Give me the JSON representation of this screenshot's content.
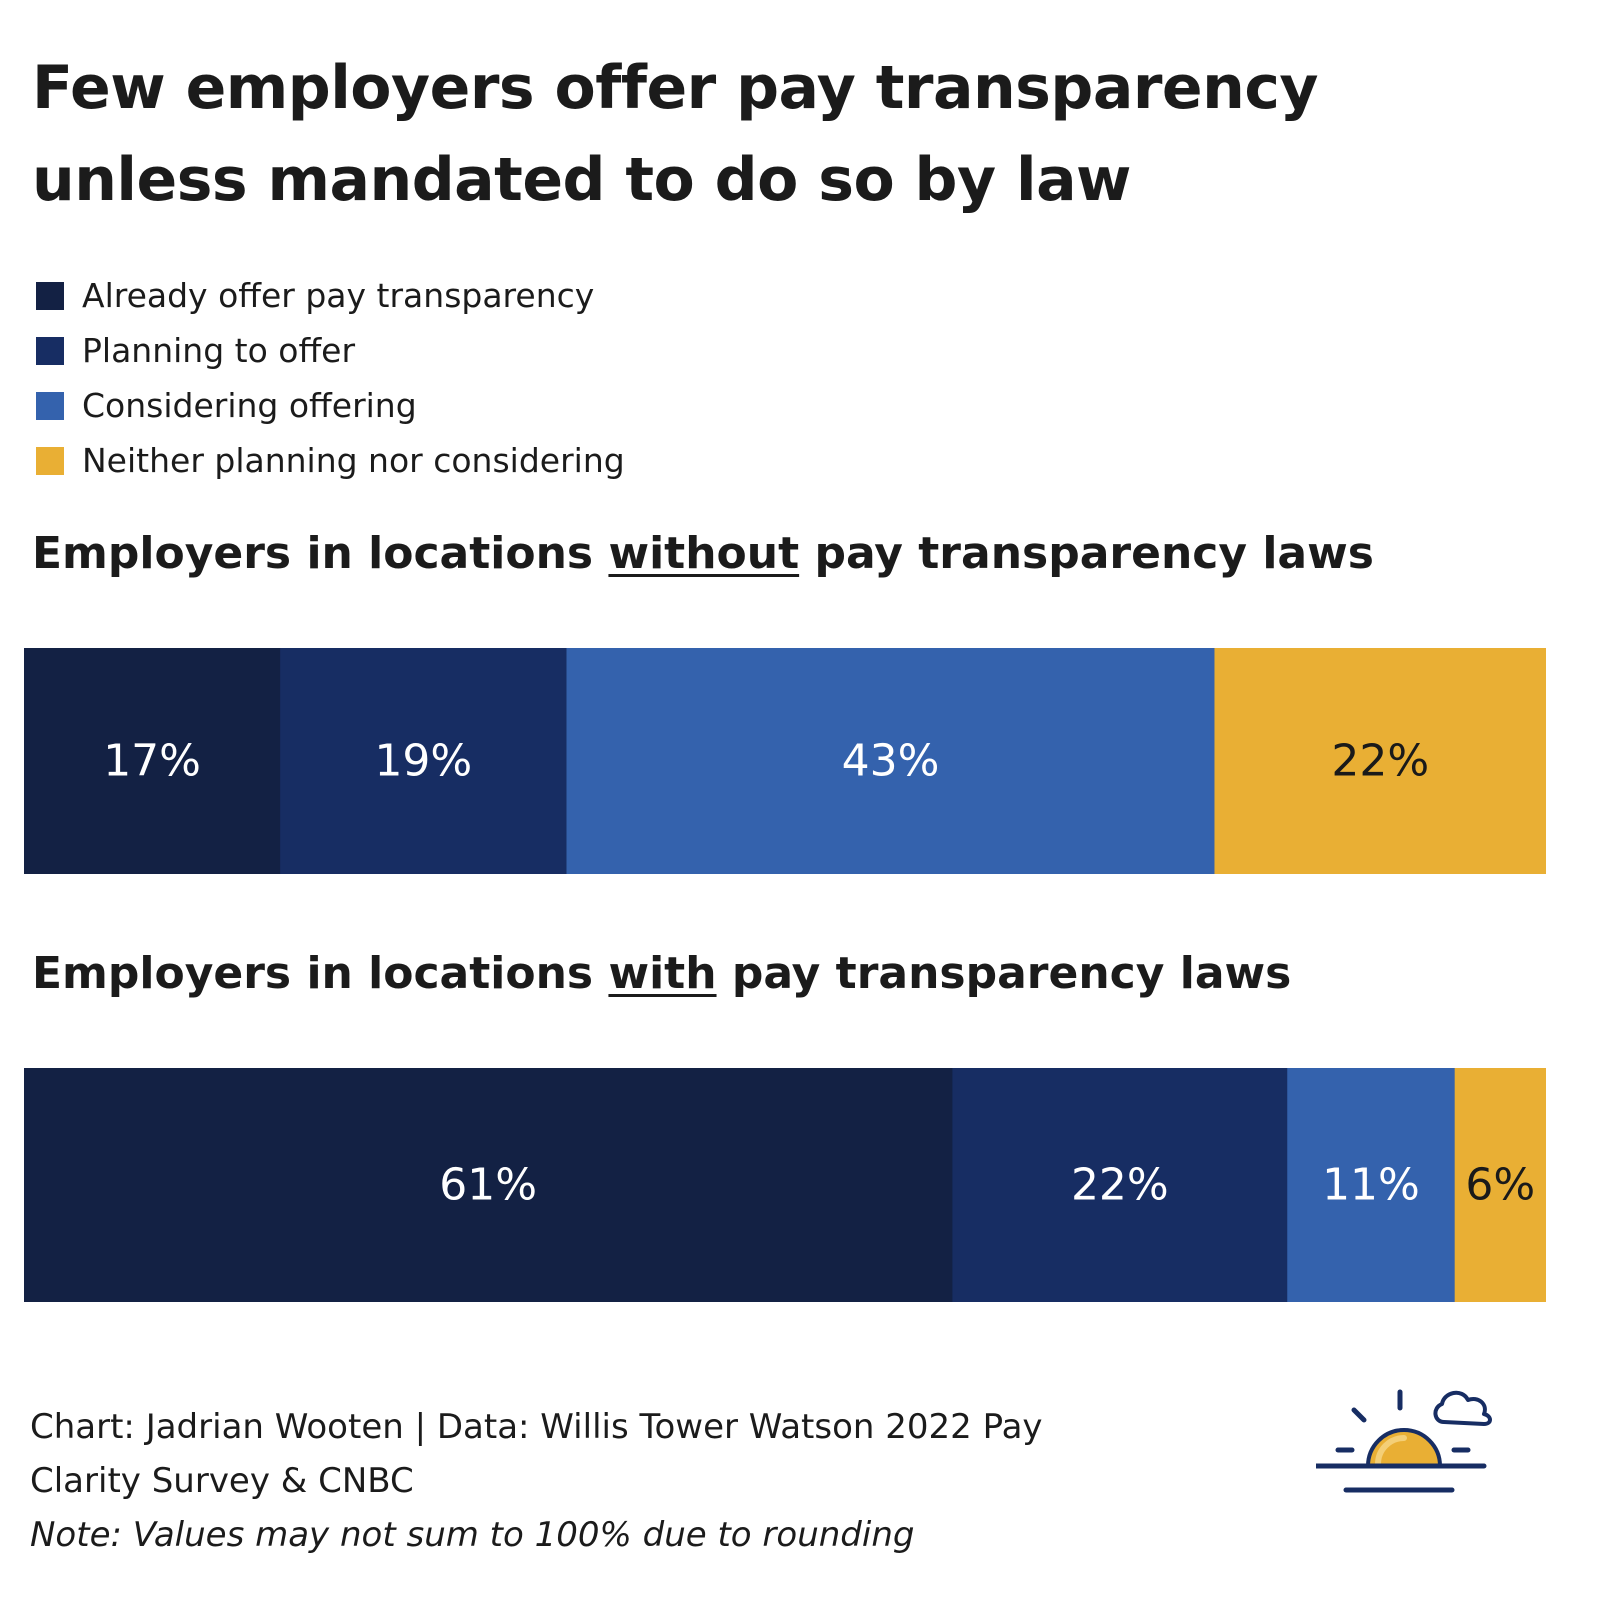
{
  "title_line1": "Few employers offer pay transparency",
  "title_line2": "unless mandated to do so by law",
  "chart_data": {
    "type": "bar",
    "orientation": "horizontal-stacked-100",
    "title": "Few employers offer pay transparency unless mandated to do so by law",
    "legend_position": "top-left",
    "series": [
      {
        "name": "Already offer pay transparency",
        "color": "#132144",
        "label_color": "#ffffff"
      },
      {
        "name": "Planning to offer",
        "color": "#172d63",
        "label_color": "#ffffff"
      },
      {
        "name": "Considering offering",
        "color": "#3462ad",
        "label_color": "#ffffff"
      },
      {
        "name": "Neither planning nor considering",
        "color": "#e9af34",
        "label_color": "#1a1a1a"
      }
    ],
    "groups": [
      {
        "title_before": "Employers in locations ",
        "title_emphasis": "without",
        "title_after": " pay transparency laws",
        "values": [
          17,
          19,
          43,
          22
        ],
        "labels": [
          "17%",
          "19%",
          "43%",
          "22%"
        ]
      },
      {
        "title_before": "Employers in locations ",
        "title_emphasis": "with",
        "title_after": " pay transparency laws",
        "values": [
          61,
          22,
          11,
          6
        ],
        "labels": [
          "61%",
          "22%",
          "11%",
          "6%"
        ]
      }
    ]
  },
  "footer": {
    "credit_line1": "Chart: Jadrian Wooten | Data: Willis Tower Watson 2022 Pay",
    "credit_line2": "Clarity Survey & CNBC",
    "note": "Note: Values may not sum to 100% due to rounding"
  },
  "logo": {
    "icon": "sunrise-cloud-icon",
    "colors": {
      "sun": "#e9af34",
      "lines": "#172d63"
    }
  }
}
